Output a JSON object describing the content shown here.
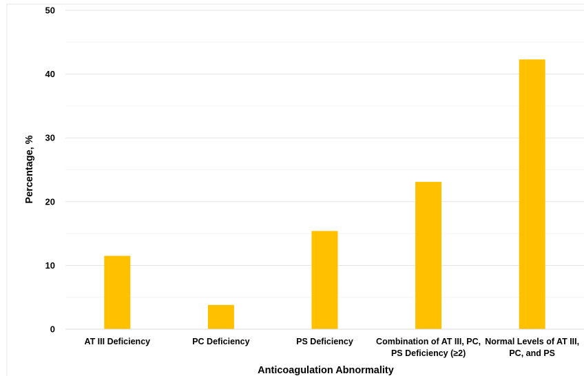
{
  "chart_data": {
    "type": "bar",
    "title": "",
    "xlabel": "Anticoagulation Abnormality",
    "ylabel": "Percentage, %",
    "ylim": [
      0,
      50
    ],
    "yticks": [
      "0",
      "10",
      "20",
      "30",
      "40",
      "50"
    ],
    "grid": true,
    "legend": "none",
    "bar_color": "#FFC000",
    "categories": [
      [
        "AT III Deficiency"
      ],
      [
        "PC Deficiency"
      ],
      [
        "PS Deficiency"
      ],
      [
        "Combination of AT III, PC,",
        "PS Deficiency (≥2)"
      ],
      [
        "Normal Levels of AT III,",
        "PC, and PS"
      ]
    ],
    "values": [
      11.5,
      3.8,
      15.4,
      23.1,
      42.3
    ]
  }
}
